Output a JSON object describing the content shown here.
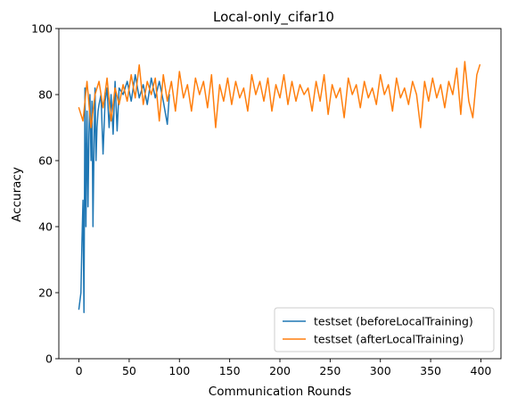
{
  "chart_data": {
    "type": "line",
    "title": "Local-only_cifar10",
    "xlabel": "Communication Rounds",
    "ylabel": "Accuracy",
    "xlim": [
      -20,
      420
    ],
    "ylim": [
      0,
      100
    ],
    "xticks": [
      0,
      50,
      100,
      150,
      200,
      250,
      300,
      350,
      400
    ],
    "yticks": [
      0,
      20,
      40,
      60,
      80,
      100
    ],
    "grid": false,
    "legend_position": "lower-right",
    "series": [
      {
        "name": "testset (beforeLocalTraining)",
        "color": "#1f77b4",
        "x": [
          0,
          2,
          3,
          4,
          5,
          6,
          7,
          8,
          9,
          10,
          11,
          12,
          13,
          14,
          15,
          16,
          17,
          18,
          19,
          20,
          22,
          24,
          26,
          28,
          30,
          32,
          34,
          36,
          38,
          40,
          44,
          48,
          52,
          56,
          60,
          64,
          68,
          72,
          76,
          80,
          84,
          88,
          90
        ],
        "values": [
          15,
          20,
          35,
          48,
          14,
          82,
          40,
          75,
          46,
          68,
          80,
          60,
          78,
          40,
          65,
          82,
          60,
          70,
          75,
          77,
          80,
          62,
          78,
          82,
          70,
          80,
          68,
          84,
          69,
          82,
          80,
          84,
          78,
          86,
          79,
          83,
          77,
          85,
          79,
          84,
          78,
          71,
          80
        ]
      },
      {
        "name": "testset (afterLocalTraining)",
        "color": "#ff7f0e",
        "x": [
          0,
          4,
          8,
          12,
          16,
          20,
          24,
          28,
          32,
          36,
          40,
          44,
          48,
          52,
          56,
          60,
          64,
          68,
          72,
          76,
          80,
          84,
          88,
          92,
          96,
          100,
          104,
          108,
          112,
          116,
          120,
          124,
          128,
          132,
          136,
          140,
          144,
          148,
          152,
          156,
          160,
          164,
          168,
          172,
          176,
          180,
          184,
          188,
          192,
          196,
          200,
          204,
          208,
          212,
          216,
          220,
          224,
          228,
          232,
          236,
          240,
          244,
          248,
          252,
          256,
          260,
          264,
          268,
          272,
          276,
          280,
          284,
          288,
          292,
          296,
          300,
          304,
          308,
          312,
          316,
          320,
          324,
          328,
          332,
          336,
          340,
          344,
          348,
          352,
          356,
          360,
          364,
          368,
          372,
          376,
          380,
          384,
          388,
          392,
          396,
          399
        ],
        "values": [
          76,
          72,
          84,
          70,
          80,
          84,
          76,
          85,
          72,
          82,
          77,
          83,
          78,
          86,
          79,
          89,
          77,
          84,
          80,
          85,
          72,
          86,
          78,
          84,
          75,
          87,
          79,
          83,
          75,
          85,
          80,
          84,
          76,
          86,
          70,
          83,
          78,
          85,
          77,
          84,
          79,
          82,
          75,
          86,
          80,
          84,
          78,
          85,
          75,
          83,
          79,
          86,
          77,
          84,
          78,
          83,
          80,
          82,
          75,
          84,
          78,
          86,
          74,
          83,
          79,
          82,
          73,
          85,
          80,
          83,
          76,
          84,
          79,
          82,
          77,
          86,
          80,
          83,
          75,
          85,
          79,
          82,
          77,
          84,
          80,
          70,
          84,
          78,
          85,
          79,
          83,
          76,
          84,
          80,
          88,
          74,
          90,
          78,
          73,
          86,
          89
        ]
      }
    ]
  }
}
